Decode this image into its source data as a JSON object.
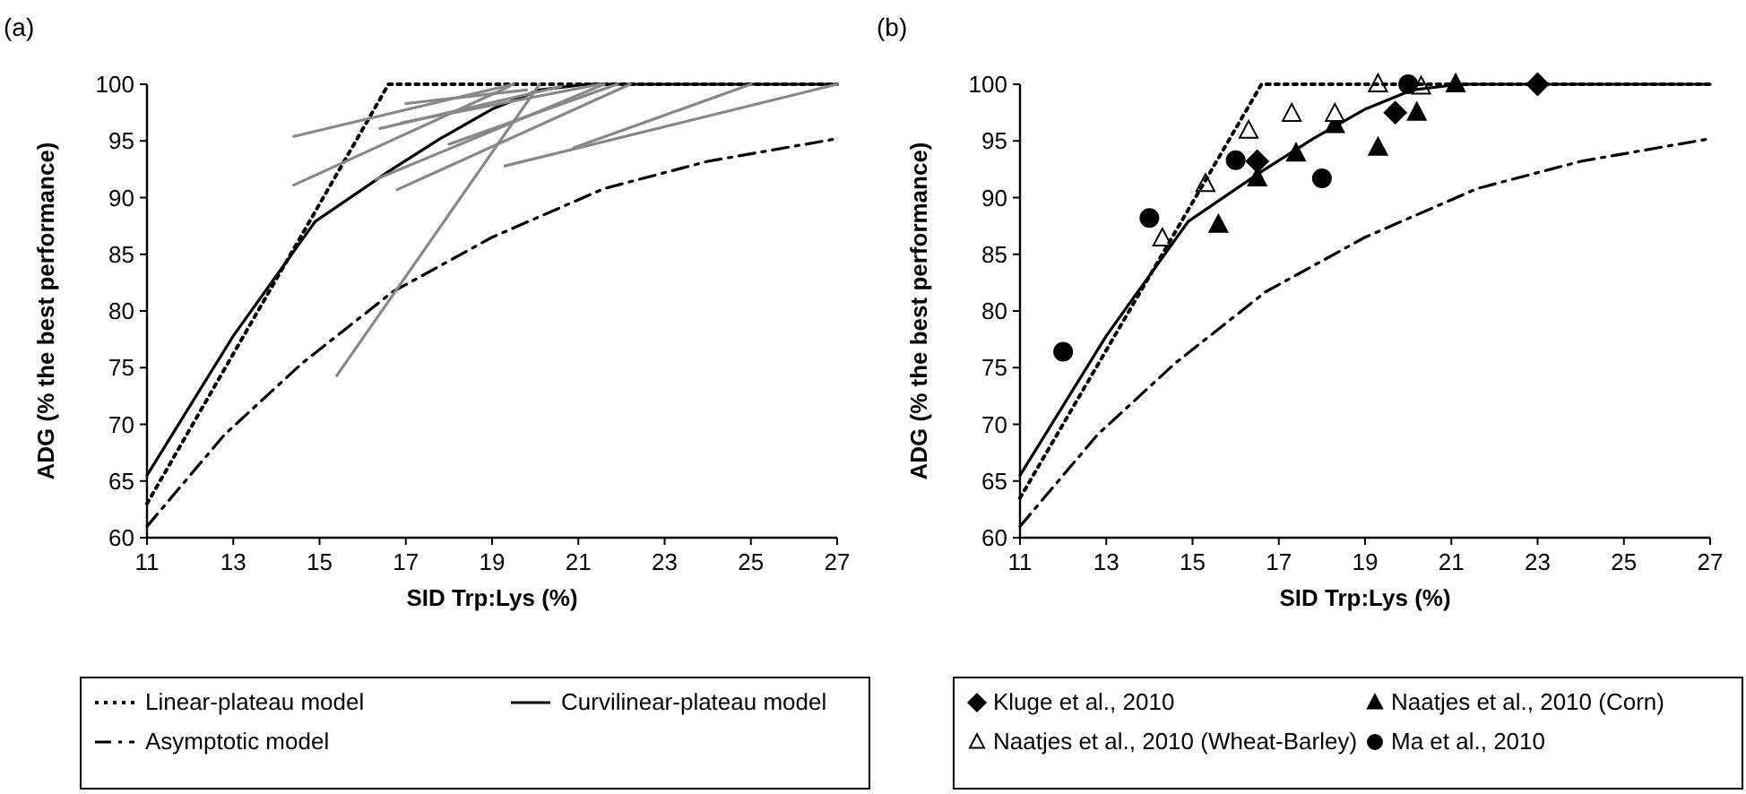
{
  "chart_data": [
    {
      "type": "line",
      "title": "(a)",
      "xlabel": "SID Trp:Lys (%)",
      "ylabel": "ADG (% the best performance)",
      "xlim": [
        11,
        27
      ],
      "ylim": [
        60,
        100
      ],
      "xticks": [
        11,
        13,
        15,
        17,
        19,
        21,
        23,
        25,
        27
      ],
      "yticks": [
        60,
        65,
        70,
        75,
        80,
        85,
        90,
        95,
        100
      ],
      "legend": "bottom",
      "marker": "none",
      "series": [
        {
          "name": "Linear-plateau model",
          "color": "#000000",
          "line_style": "dotted",
          "x": [
            11,
            16.6,
            27
          ],
          "values": [
            63,
            100,
            100
          ]
        },
        {
          "name": "Curvilinear-plateau model",
          "color": "#000000",
          "line_style": "solid",
          "x": [
            11,
            13,
            14.9,
            16.6,
            17.8,
            19,
            20.1,
            21.2,
            27
          ],
          "values": [
            65.5,
            77.8,
            87.9,
            92.3,
            95.2,
            97.8,
            99.5,
            100,
            100
          ]
        },
        {
          "name": "Asymptotic model",
          "color": "#000000",
          "line_style": "dashed",
          "x": [
            11,
            12.8,
            14.6,
            16.7,
            19,
            21.6,
            24,
            27
          ],
          "values": [
            61,
            69.1,
            75.4,
            81.7,
            86.5,
            90.8,
            93.2,
            95.2
          ]
        },
        {
          "color": "#888888",
          "line_style": "solid",
          "x": [
            14.4,
            19.5
          ],
          "values": [
            95.4,
            100
          ]
        },
        {
          "color": "#888888",
          "line_style": "solid",
          "x": [
            14.4,
            19.4
          ],
          "values": [
            91.1,
            99.8
          ]
        },
        {
          "color": "#888888",
          "line_style": "solid",
          "x": [
            15.4,
            20.1
          ],
          "values": [
            74.3,
            100
          ]
        },
        {
          "color": "#888888",
          "line_style": "solid",
          "x": [
            19.3,
            27
          ],
          "values": [
            92.8,
            100
          ]
        },
        {
          "color": "#888888",
          "line_style": "solid",
          "x": [
            16.8,
            22.2
          ],
          "values": [
            90.7,
            100
          ]
        },
        {
          "color": "#888888",
          "line_style": "solid",
          "x": [
            20.9,
            25
          ],
          "values": [
            94.4,
            100
          ]
        },
        {
          "color": "#888888",
          "line_style": "solid",
          "x": [
            17,
            19.8
          ],
          "values": [
            98.3,
            99.5
          ]
        },
        {
          "color": "#888888",
          "line_style": "solid",
          "x": [
            16.4,
            20.6
          ],
          "values": [
            96.1,
            99.8
          ]
        },
        {
          "color": "#888888",
          "line_style": "solid",
          "x": [
            16.9,
            21.5
          ],
          "values": [
            96.6,
            100
          ]
        },
        {
          "color": "#888888",
          "line_style": "solid",
          "x": [
            18,
            21.9
          ],
          "values": [
            94.7,
            100
          ]
        },
        {
          "color": "#888888",
          "line_style": "solid",
          "x": [
            16.3,
            21.6
          ],
          "values": [
            91.6,
            100
          ]
        }
      ]
    },
    {
      "type": "line",
      "title": "(b)",
      "xlabel": "SID Trp:Lys (%)",
      "ylabel": "ADG (% the best performance)",
      "xlim": [
        11,
        27
      ],
      "ylim": [
        60,
        100
      ],
      "xticks": [
        11,
        13,
        15,
        17,
        19,
        21,
        23,
        25,
        27
      ],
      "yticks": [
        60,
        65,
        70,
        75,
        80,
        85,
        90,
        95,
        100
      ],
      "legend": "bottom",
      "series": [
        {
          "type": "scatter",
          "name": "Kluge et al., 2010",
          "color": "#000000",
          "marker": "diamond",
          "x": [
            16.5,
            19.7,
            23
          ],
          "values": [
            93.2,
            97.5,
            100
          ]
        },
        {
          "type": "scatter",
          "name": "Naatjes et al., 2010 (Corn)",
          "color": "#000000",
          "marker": "triangle",
          "x": [
            15.6,
            16.5,
            17.4,
            18.3,
            19.3,
            20.2,
            21.1
          ],
          "values": [
            87.6,
            91.7,
            93.9,
            96.4,
            94.4,
            97.5,
            100
          ]
        },
        {
          "type": "scatter",
          "name": "Naatjes et al., 2010 (Wheat-Barley)",
          "color": "#ffffff",
          "marker": "triangle",
          "x": [
            14.3,
            15.3,
            16.3,
            17.3,
            18.3,
            19.3,
            20.3
          ],
          "values": [
            86.4,
            91.2,
            95.9,
            97.4,
            97.4,
            100,
            99.8
          ]
        },
        {
          "type": "scatter",
          "name": "Ma et al., 2010",
          "color": "#000000",
          "marker": "circle",
          "x": [
            12,
            14,
            16,
            18,
            20
          ],
          "values": [
            76.4,
            88.2,
            93.3,
            91.7,
            100
          ]
        },
        {
          "color": "#000000",
          "line_style": "dotted",
          "marker": "none",
          "x": [
            11,
            16.6,
            27
          ],
          "values": [
            63.5,
            100,
            100
          ]
        },
        {
          "color": "#000000",
          "line_style": "solid",
          "marker": "none",
          "x": [
            11,
            13,
            14.9,
            16.6,
            17.8,
            19,
            20.1,
            21.2,
            27
          ],
          "values": [
            65.5,
            77.8,
            87.9,
            92.3,
            95.2,
            97.8,
            99.5,
            100,
            100
          ]
        },
        {
          "color": "#000000",
          "line_style": "dashed",
          "marker": "none",
          "x": [
            11,
            12.8,
            14.6,
            16.7,
            19,
            21.6,
            24,
            27
          ],
          "values": [
            61,
            69.1,
            75.4,
            81.7,
            86.5,
            90.8,
            93.2,
            95.2
          ]
        }
      ]
    }
  ]
}
